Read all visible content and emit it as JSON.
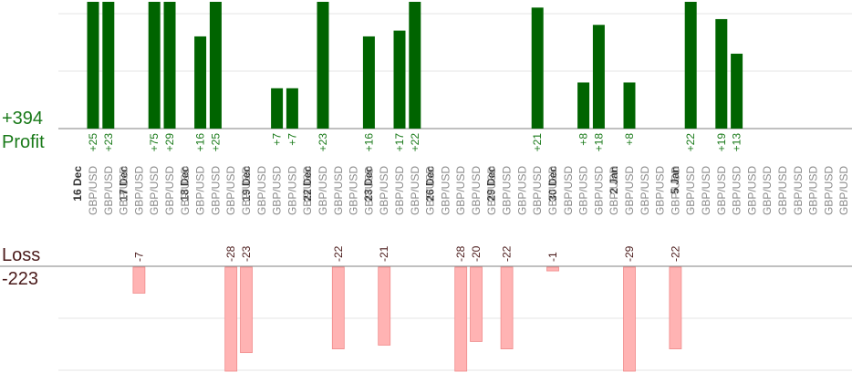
{
  "summary": {
    "profit_total": "+394",
    "profit_label": "Profit",
    "loss_label": "Loss",
    "loss_total": "-223"
  },
  "colors": {
    "profit_bar": "#006400",
    "profit_text": "#1a7a1a",
    "loss_bar": "#ffb3b3",
    "loss_bar_edge": "#f08a8a",
    "loss_text": "#4a1a1a",
    "grid": "#e6e6e6",
    "axis": "#808080",
    "date_text": "#333333",
    "pair_text": "#8a8a8a"
  },
  "chart_data": {
    "type": "bar",
    "title": "",
    "profit_ylim": [
      0,
      25
    ],
    "loss_ylim": [
      -28,
      0
    ],
    "grid": true,
    "categories": [
      "GBP/USD",
      "GBP/USD",
      "GBP/USD",
      "GBP/USD",
      "GBP/USD",
      "GBP/USD",
      "GBP/USD",
      "GBP/USD",
      "GBP/USD",
      "GBP/USD",
      "GBP/USD",
      "GBP/USD",
      "GBP/USD",
      "GBP/USD",
      "GBP/USD",
      "GBP/USD",
      "GBP/USD",
      "GBP/USD",
      "GBP/USD",
      "GBP/USD",
      "GBP/USD",
      "GBP/USD",
      "GBP/USD",
      "GBP/USD",
      "GBP/USD",
      "GBP/USD",
      "GBP/USD",
      "GBP/USD",
      "GBP/USD",
      "GBP/USD",
      "GBP/USD",
      "GBP/USD",
      "GBP/USD",
      "GBP/USD",
      "GBP/USD",
      "GBP/USD",
      "GBP/USD",
      "GBP/USD",
      "GBP/USD",
      "GBP/USD",
      "GBP/USD",
      "GBP/USD",
      "GBP/USD",
      "GBP/USD",
      "GBP/USD",
      "GBP/USD",
      "GBP/USD",
      "GBP/USD",
      "GBP/USD",
      "GBP/USD",
      "GBP/USD",
      "GBP/USD"
    ],
    "dates": [
      {
        "label": "16 Dec",
        "start": 0
      },
      {
        "label": "17 Dec",
        "start": 3
      },
      {
        "label": "18 Dec",
        "start": 7
      },
      {
        "label": "19 Dec",
        "start": 11
      },
      {
        "label": "22 Dec",
        "start": 15
      },
      {
        "label": "23 Dec",
        "start": 19
      },
      {
        "label": "26 Dec",
        "start": 23
      },
      {
        "label": "29 Dec",
        "start": 27
      },
      {
        "label": "30 Dec",
        "start": 31
      },
      {
        "label": "2 Jan",
        "start": 35
      },
      {
        "label": "5 Jan",
        "start": 39
      }
    ],
    "series": [
      {
        "name": "Profit",
        "values": [
          25,
          23,
          null,
          null,
          75,
          29,
          null,
          16,
          25,
          null,
          null,
          null,
          7,
          7,
          null,
          23,
          null,
          null,
          16,
          null,
          17,
          22,
          null,
          null,
          null,
          null,
          null,
          null,
          null,
          21,
          null,
          null,
          8,
          18,
          null,
          8,
          null,
          null,
          null,
          22,
          null,
          19,
          13,
          null,
          null,
          null,
          null,
          null,
          null,
          null,
          null,
          null
        ]
      },
      {
        "name": "Loss",
        "values": [
          null,
          null,
          null,
          -7,
          null,
          null,
          null,
          null,
          null,
          -28,
          -23,
          null,
          null,
          null,
          null,
          null,
          -22,
          null,
          null,
          -21,
          null,
          null,
          null,
          null,
          -28,
          -20,
          null,
          -22,
          null,
          null,
          -1,
          null,
          null,
          null,
          null,
          -29,
          null,
          null,
          -22,
          null,
          null,
          null,
          null,
          null,
          null,
          null,
          null,
          null,
          null,
          null,
          null,
          null
        ]
      }
    ],
    "value_labels": {
      "profit": [
        "+25",
        "+23",
        null,
        null,
        "+75",
        "+29",
        null,
        "+16",
        "+25",
        null,
        null,
        null,
        "+7",
        "+7",
        null,
        "+23",
        null,
        null,
        "+16",
        null,
        "+17",
        "+22",
        null,
        null,
        null,
        null,
        null,
        null,
        null,
        "+21",
        null,
        null,
        "+8",
        "+18",
        null,
        "+8",
        null,
        null,
        null,
        "+22",
        null,
        "+19",
        "+13",
        null,
        null,
        null,
        null,
        null,
        null,
        null,
        null,
        null
      ],
      "loss": [
        null,
        null,
        null,
        "-7",
        null,
        null,
        null,
        null,
        null,
        "-28",
        "-23",
        null,
        null,
        null,
        null,
        null,
        "-22",
        null,
        null,
        "-21",
        null,
        null,
        null,
        null,
        "-28",
        "-20",
        null,
        "-22",
        null,
        null,
        "-1",
        null,
        null,
        null,
        null,
        "-29",
        null,
        null,
        "-22",
        null,
        null,
        null,
        null,
        null,
        null,
        null,
        null,
        null,
        null,
        null,
        null,
        null
      ]
    }
  }
}
